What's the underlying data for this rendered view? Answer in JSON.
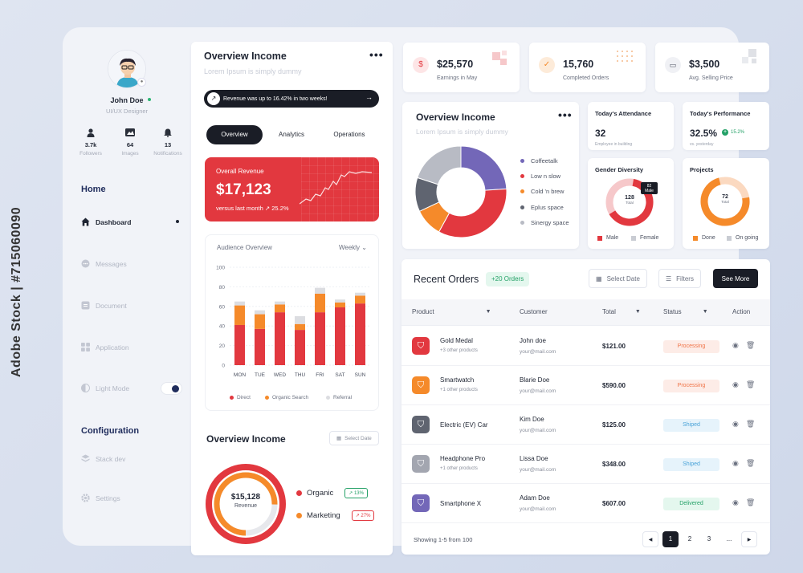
{
  "watermark": "Adobe Stock | #715060090",
  "profile": {
    "name": "John Doe",
    "role": "UI/UX Designer"
  },
  "stats": [
    {
      "icon": "user-icon",
      "value": "3.7k",
      "label": "Followers"
    },
    {
      "icon": "image-icon",
      "value": "64",
      "label": "Images"
    },
    {
      "icon": "bell-icon",
      "value": "13",
      "label": "Notifications"
    }
  ],
  "nav": {
    "home_heading": "Home",
    "items": [
      {
        "label": "Dashboard",
        "icon": "home-icon"
      },
      {
        "label": "Messages",
        "icon": "message-icon"
      },
      {
        "label": "Document",
        "icon": "document-icon"
      },
      {
        "label": "Application",
        "icon": "grid-icon"
      },
      {
        "label": "Light Mode",
        "icon": "contrast-icon"
      }
    ],
    "config_heading": "Configuration",
    "config_items": [
      {
        "label": "Stack dev",
        "icon": "stack-icon"
      },
      {
        "label": "Settings",
        "icon": "settings-icon"
      }
    ]
  },
  "overview": {
    "title": "Overview Income",
    "subtitle": "Lorem Ipsum is simply dummy",
    "banner": "Revenue was up to 16.42% in two weeks!",
    "tabs": [
      "Overview",
      "Analytics",
      "Operations"
    ],
    "revenue_label": "Overall Revenue",
    "revenue_value": "$17,123",
    "revenue_sub": "versus last month",
    "revenue_change": "25.2%"
  },
  "audience": {
    "title": "Audience Overview",
    "period": "Weekly",
    "legend": [
      "Direct",
      "Organic Search",
      "Referral"
    ]
  },
  "overview_income_2": {
    "title": "Overview Income",
    "select": "Select Date",
    "center_value": "$15,128",
    "center_label": "Revenue",
    "legend": [
      {
        "label": "Organic",
        "change": "13%"
      },
      {
        "label": "Marketing",
        "change": "27%"
      }
    ]
  },
  "kpis": [
    {
      "value": "$25,570",
      "label": "Earnings in May",
      "icon": "dollar-icon"
    },
    {
      "value": "15,760",
      "label": "Completed Orders",
      "icon": "check-icon"
    },
    {
      "value": "$3,500",
      "label": "Avg. Selling Price",
      "icon": "cash-icon"
    }
  ],
  "income_donut": {
    "title": "Overview Income",
    "subtitle": "Lorem Ipsum is simply dummy",
    "legend": [
      "Coffeetalk",
      "Low n slow",
      "Cold 'n brew",
      "Eplus space",
      "Sinergy space"
    ]
  },
  "attendance": {
    "title": "Today's Attendance",
    "value": "32",
    "sub": "Employee in building"
  },
  "performance": {
    "title": "Today's Performance",
    "value": "32.5%",
    "change": "15.2%",
    "sub": "vs. yesterday"
  },
  "gender": {
    "title": "Gender Diversity",
    "center_value": "128",
    "center_label": "Total",
    "tooltip_value": "82",
    "tooltip_label": "Male",
    "legend": [
      "Male",
      "Female"
    ]
  },
  "projects": {
    "title": "Projects",
    "center_value": "72",
    "center_label": "Total",
    "legend": [
      "Done",
      "On going"
    ]
  },
  "orders": {
    "title": "Recent Orders",
    "badge": "+20 Orders",
    "select_date": "Select Date",
    "filters": "Filters",
    "see_more": "See More",
    "columns": [
      "Product",
      "Customer",
      "Total",
      "Status",
      "Action"
    ],
    "rows": [
      {
        "product": "Gold Medal",
        "sub": "+3 other products",
        "customer": "John doe",
        "email": "your@mail.com",
        "total": "$121.00",
        "status": "Processing"
      },
      {
        "product": "Smartwatch",
        "sub": "+1 other products",
        "customer": "Blarie Doe",
        "email": "your@mail.com",
        "total": "$590.00",
        "status": "Processing"
      },
      {
        "product": "Electric (EV) Car",
        "sub": "",
        "customer": "Kim Doe",
        "email": "your@mail.com",
        "total": "$125.00",
        "status": "Shiped"
      },
      {
        "product": "Headphone Pro",
        "sub": "+1 other products",
        "customer": "Lissa Doe",
        "email": "your@mail.com",
        "total": "$348.00",
        "status": "Shiped"
      },
      {
        "product": "Smartphone X",
        "sub": "",
        "customer": "Adam Doe",
        "email": "your@mail.com",
        "total": "$607.00",
        "status": "Delivered"
      }
    ],
    "footer": "Showing 1-5 from 100",
    "pages": [
      "1",
      "2",
      "3",
      "..."
    ]
  },
  "colors": {
    "red": "#e2383f",
    "orange": "#f58a2a",
    "purple": "#7367b8",
    "gray": "#5f6470",
    "navy": "#1f2c5c"
  },
  "chart_data": [
    {
      "type": "bar",
      "title": "Audience Overview",
      "categories": [
        "MON",
        "TUE",
        "WED",
        "THU",
        "FRI",
        "SAT",
        "SUN"
      ],
      "series": [
        {
          "name": "Direct",
          "values": [
            41,
            37,
            54,
            36,
            54,
            59,
            63
          ]
        },
        {
          "name": "Organic Search",
          "values": [
            20,
            15,
            8,
            6,
            19,
            5,
            8
          ]
        },
        {
          "name": "Referral",
          "values": [
            4,
            4,
            3,
            8,
            6,
            3,
            3
          ]
        }
      ],
      "ylim": [
        0,
        100
      ],
      "yticks": [
        0,
        20,
        40,
        60,
        80,
        100
      ]
    },
    {
      "type": "pie",
      "title": "Overview Income",
      "categories": [
        "Coffeetalk",
        "Low n slow",
        "Cold 'n brew",
        "Eplus space",
        "Sinergy space"
      ],
      "values": [
        24,
        34,
        10,
        12,
        20
      ]
    }
  ]
}
